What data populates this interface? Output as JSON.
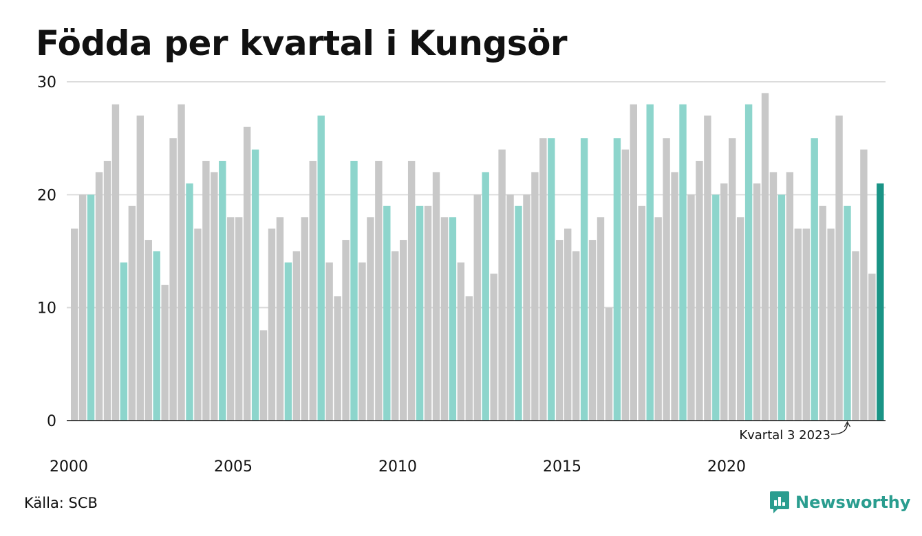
{
  "title": "Födda per kvartal i Kungsör",
  "source": "Källa: SCB",
  "brand": "Newsworthy",
  "annotation": "Kvartal 3 2023",
  "colors": {
    "other": "#c8c8c8",
    "q3": "#8dd5cc",
    "latest": "#1a9486",
    "brand": "#2a9d8f"
  },
  "chart_data": {
    "type": "bar",
    "xlabel": "",
    "ylabel": "",
    "ylim": [
      0,
      30
    ],
    "yticks": [
      "0",
      "10",
      "20",
      "30"
    ],
    "xtick_labels": [
      "2000",
      "2005",
      "2010",
      "2015",
      "2020"
    ],
    "grid": true,
    "start": "2000 Q1",
    "values": [
      17,
      20,
      20,
      22,
      23,
      28,
      14,
      19,
      27,
      16,
      15,
      12,
      25,
      28,
      21,
      17,
      23,
      22,
      23,
      18,
      18,
      26,
      24,
      8,
      17,
      18,
      14,
      15,
      18,
      23,
      27,
      14,
      11,
      16,
      23,
      14,
      18,
      23,
      19,
      15,
      16,
      23,
      19,
      19,
      22,
      18,
      18,
      14,
      11,
      20,
      22,
      13,
      24,
      20,
      19,
      20,
      22,
      25,
      25,
      16,
      17,
      15,
      25,
      16,
      18,
      10,
      25,
      24,
      28,
      19,
      28,
      18,
      25,
      22,
      28,
      20,
      23,
      27,
      20,
      21,
      25,
      18,
      28,
      21,
      29,
      22,
      20,
      22,
      17,
      17,
      25,
      19,
      17,
      27,
      19,
      15,
      24,
      13,
      21
    ]
  }
}
